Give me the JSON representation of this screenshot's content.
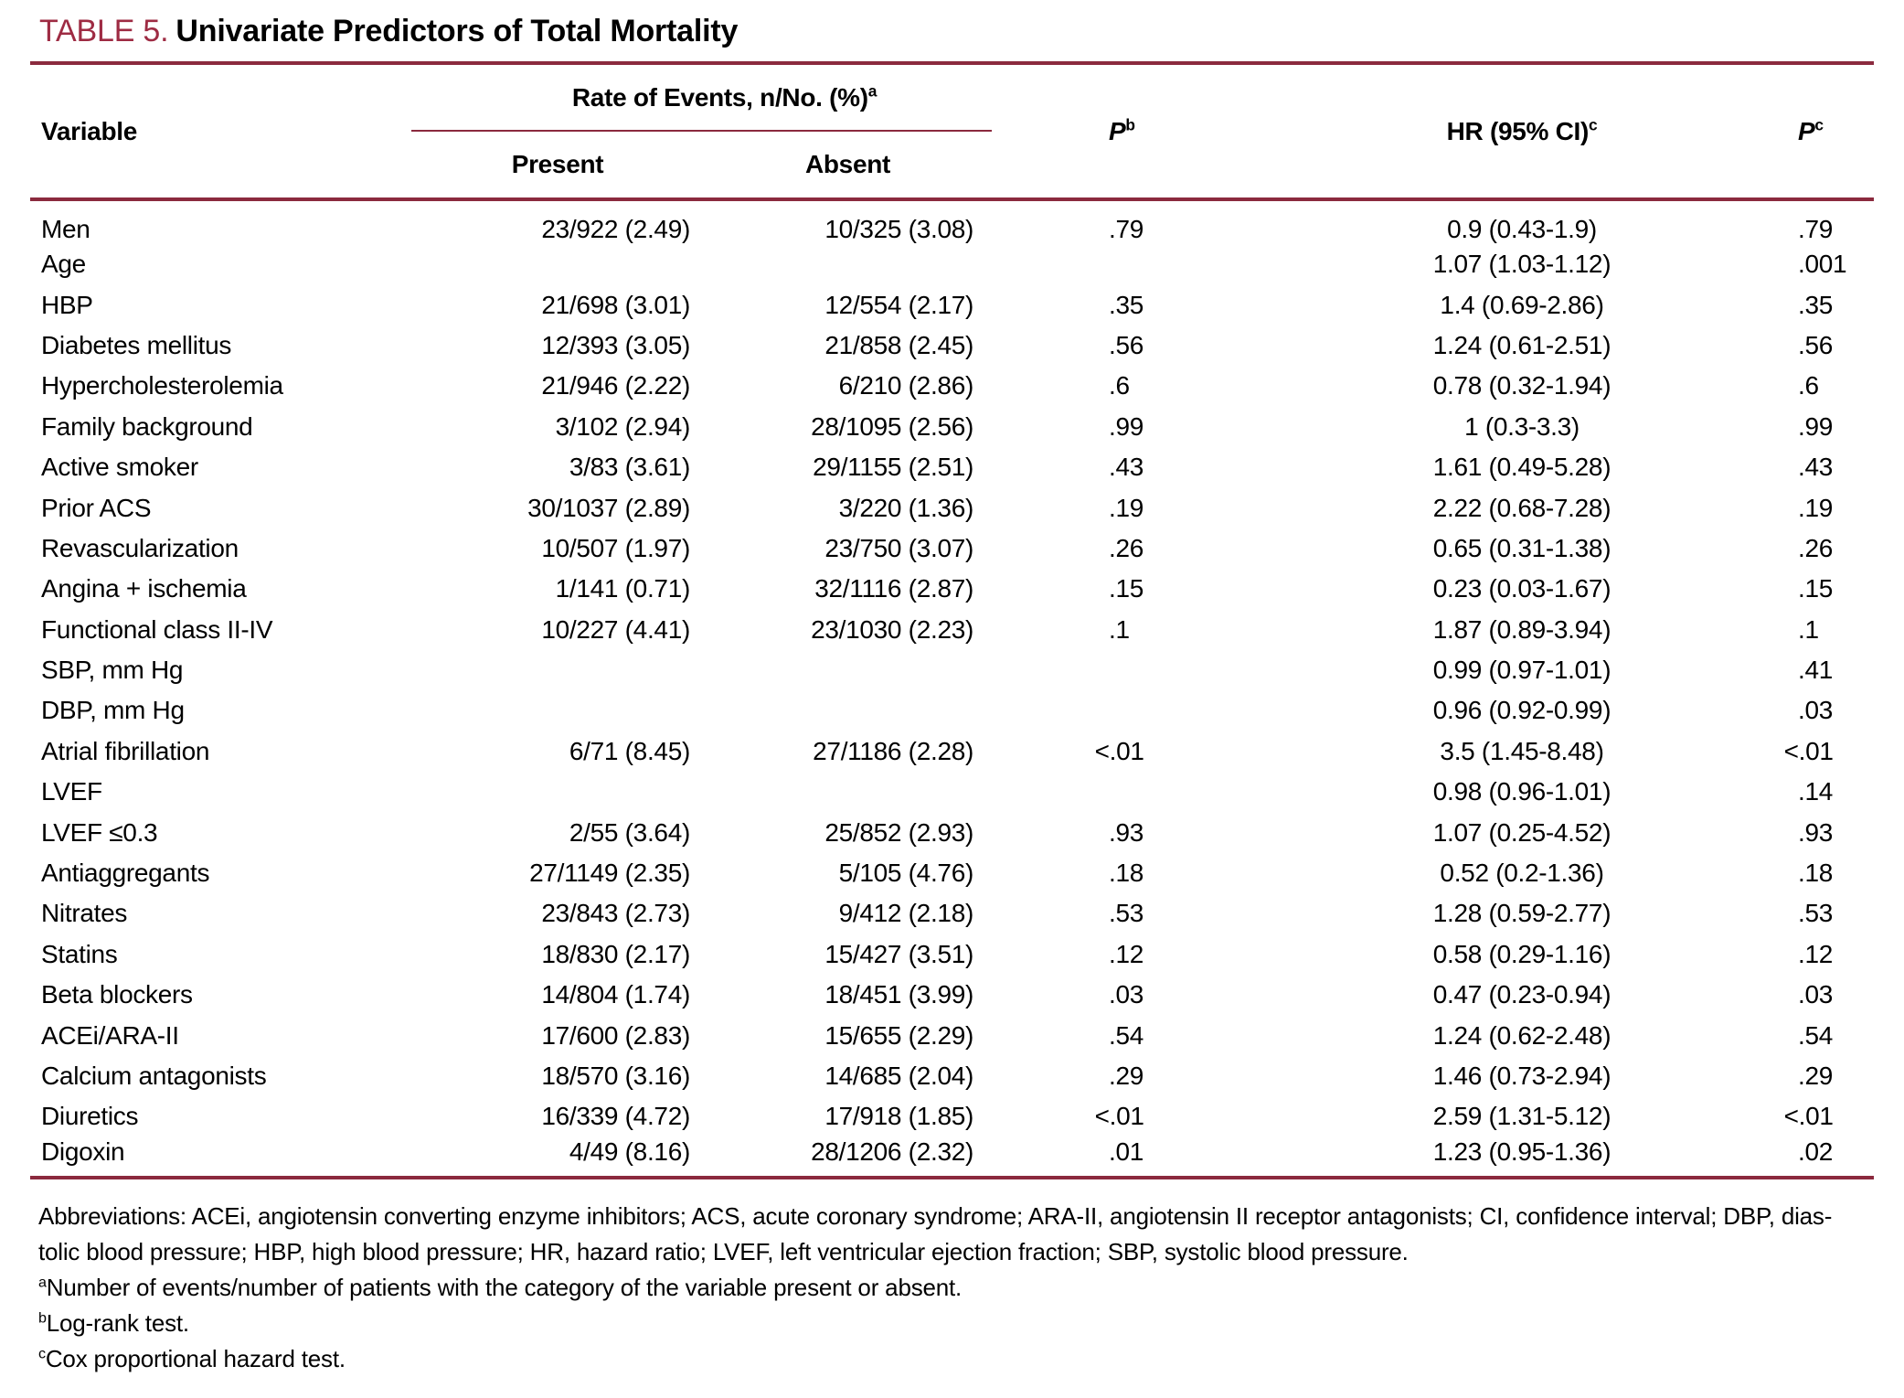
{
  "colors": {
    "accent": "#9e2b43",
    "rule": "#8b2a3e"
  },
  "title": {
    "label": "TABLE 5.",
    "text": "Univariate Predictors of Total Mortality"
  },
  "header": {
    "variable": "Variable",
    "spanner": {
      "text": "Rate of Events, n/No. (%)",
      "sup": "a"
    },
    "present": "Present",
    "absent": "Absent",
    "p_b": {
      "text": "P",
      "sup": "b"
    },
    "hr": {
      "text": "HR (95% CI)",
      "sup": "c"
    },
    "p_c": {
      "text": "P",
      "sup": "c"
    }
  },
  "rows": [
    {
      "variable": "Men",
      "present": "23/922 (2.49)",
      "absent": "10/325 (3.08)",
      "p_b": ".79",
      "hr": "0.9 (0.43-1.9)",
      "p_c": ".79"
    },
    {
      "variable": "Age",
      "present": "",
      "absent": "",
      "p_b": "",
      "hr": "1.07 (1.03-1.12)",
      "p_c": ".001"
    },
    {
      "variable": "HBP",
      "present": "21/698 (3.01)",
      "absent": "12/554 (2.17)",
      "p_b": ".35",
      "hr": "1.4 (0.69-2.86)",
      "p_c": ".35"
    },
    {
      "variable": "Diabetes mellitus",
      "present": "12/393 (3.05)",
      "absent": "21/858 (2.45)",
      "p_b": ".56",
      "hr": "1.24 (0.61-2.51)",
      "p_c": ".56"
    },
    {
      "variable": "Hypercholesterolemia",
      "present": "21/946 (2.22)",
      "absent": "6/210 (2.86)",
      "p_b": ".6",
      "hr": "0.78 (0.32-1.94)",
      "p_c": ".6"
    },
    {
      "variable": "Family background",
      "present": "3/102 (2.94)",
      "absent": "28/1095 (2.56)",
      "p_b": ".99",
      "hr": "1 (0.3-3.3)",
      "p_c": ".99"
    },
    {
      "variable": "Active smoker",
      "present": "3/83 (3.61)",
      "absent": "29/1155 (2.51)",
      "p_b": ".43",
      "hr": "1.61 (0.49-5.28)",
      "p_c": ".43"
    },
    {
      "variable": "Prior ACS",
      "present": "30/1037 (2.89)",
      "absent": "3/220 (1.36)",
      "p_b": ".19",
      "hr": "2.22 (0.68-7.28)",
      "p_c": ".19"
    },
    {
      "variable": "Revascularization",
      "present": "10/507 (1.97)",
      "absent": "23/750 (3.07)",
      "p_b": ".26",
      "hr": "0.65 (0.31-1.38)",
      "p_c": ".26"
    },
    {
      "variable": "Angina + ischemia",
      "present": "1/141 (0.71)",
      "absent": "32/1116 (2.87)",
      "p_b": ".15",
      "hr": "0.23 (0.03-1.67)",
      "p_c": ".15"
    },
    {
      "variable": "Functional class II-IV",
      "present": "10/227 (4.41)",
      "absent": "23/1030 (2.23)",
      "p_b": ".1",
      "hr": "1.87 (0.89-3.94)",
      "p_c": ".1"
    },
    {
      "variable": "SBP, mm Hg",
      "present": "",
      "absent": "",
      "p_b": "",
      "hr": "0.99 (0.97-1.01)",
      "p_c": ".41"
    },
    {
      "variable": "DBP, mm Hg",
      "present": "",
      "absent": "",
      "p_b": "",
      "hr": "0.96 (0.92-0.99)",
      "p_c": ".03"
    },
    {
      "variable": "Atrial fibrillation",
      "present": "6/71 (8.45)",
      "absent": "27/1186 (2.28)",
      "p_b": "<.01",
      "hr": "3.5 (1.45-8.48)",
      "p_c": "<.01"
    },
    {
      "variable": "LVEF",
      "present": "",
      "absent": "",
      "p_b": "",
      "hr": "0.98 (0.96-1.01)",
      "p_c": ".14"
    },
    {
      "variable": "LVEF ≤0.3",
      "present": "2/55 (3.64)",
      "absent": "25/852 (2.93)",
      "p_b": ".93",
      "hr": "1.07 (0.25-4.52)",
      "p_c": ".93"
    },
    {
      "variable": "Antiaggregants",
      "present": "27/1149 (2.35)",
      "absent": "5/105 (4.76)",
      "p_b": ".18",
      "hr": "0.52 (0.2-1.36)",
      "p_c": ".18"
    },
    {
      "variable": "Nitrates",
      "present": "23/843 (2.73)",
      "absent": "9/412 (2.18)",
      "p_b": ".53",
      "hr": "1.28 (0.59-2.77)",
      "p_c": ".53"
    },
    {
      "variable": "Statins",
      "present": "18/830 (2.17)",
      "absent": "15/427 (3.51)",
      "p_b": ".12",
      "hr": "0.58 (0.29-1.16)",
      "p_c": ".12"
    },
    {
      "variable": "Beta blockers",
      "present": "14/804 (1.74)",
      "absent": "18/451 (3.99)",
      "p_b": ".03",
      "hr": "0.47 (0.23-0.94)",
      "p_c": ".03"
    },
    {
      "variable": "ACEi/ARA-II",
      "present": "17/600 (2.83)",
      "absent": "15/655 (2.29)",
      "p_b": ".54",
      "hr": "1.24 (0.62-2.48)",
      "p_c": ".54"
    },
    {
      "variable": "Calcium antagonists",
      "present": "18/570 (3.16)",
      "absent": "14/685 (2.04)",
      "p_b": ".29",
      "hr": "1.46 (0.73-2.94)",
      "p_c": ".29"
    },
    {
      "variable": "Diuretics",
      "present": "16/339 (4.72)",
      "absent": "17/918 (1.85)",
      "p_b": "<.01",
      "hr": "2.59 (1.31-5.12)",
      "p_c": "<.01"
    },
    {
      "variable": "Digoxin",
      "present": "4/49 (8.16)",
      "absent": "28/1206 (2.32)",
      "p_b": ".01",
      "hr": "1.23 (0.95-1.36)",
      "p_c": ".02"
    }
  ],
  "footnotes": {
    "lines": [
      {
        "sup": "",
        "text": "Abbreviations: ACEi, angiotensin converting enzyme inhibitors; ACS, acute coronary syndrome; ARA-II, angiotensin II receptor antagonists; CI, confidence interval; DBP, dias-"
      },
      {
        "sup": "",
        "text": "tolic blood pressure; HBP, high blood pressure; HR, hazard ratio; LVEF, left ventricular ejection fraction; SBP, systolic blood pressure."
      },
      {
        "sup": "a",
        "text": "Number of events/number of patients with the category of the variable present or absent."
      },
      {
        "sup": "b",
        "text": "Log-rank test."
      },
      {
        "sup": "c",
        "text": "Cox proportional hazard test."
      }
    ]
  }
}
